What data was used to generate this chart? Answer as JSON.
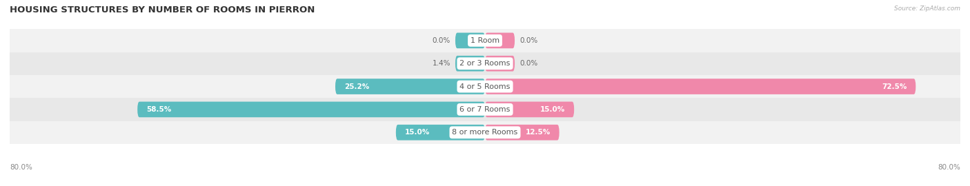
{
  "title": "HOUSING STRUCTURES BY NUMBER OF ROOMS IN PIERRON",
  "source": "Source: ZipAtlas.com",
  "categories": [
    "1 Room",
    "2 or 3 Rooms",
    "4 or 5 Rooms",
    "6 or 7 Rooms",
    "8 or more Rooms"
  ],
  "owner_values": [
    0.0,
    1.4,
    25.2,
    58.5,
    15.0
  ],
  "renter_values": [
    0.0,
    0.0,
    72.5,
    15.0,
    12.5
  ],
  "owner_color": "#5bbcbf",
  "renter_color": "#f088aa",
  "row_bg_light": "#f2f2f2",
  "row_bg_dark": "#e8e8e8",
  "axis_min": -80.0,
  "axis_max": 80.0,
  "min_bar_width": 5.0,
  "title_fontsize": 9.5,
  "label_fontsize": 7.5,
  "category_fontsize": 8,
  "source_fontsize": 6.5
}
